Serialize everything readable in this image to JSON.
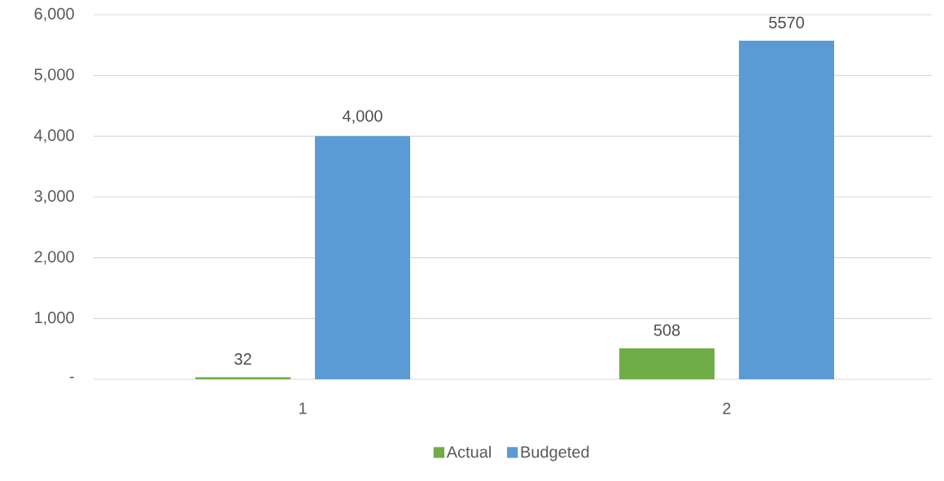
{
  "chart_data": {
    "type": "bar",
    "categories": [
      "1",
      "2"
    ],
    "series": [
      {
        "name": "Actual",
        "color": "#70ad47",
        "values": [
          32,
          508
        ],
        "value_labels": [
          "32",
          "508"
        ]
      },
      {
        "name": "Budgeted",
        "color": "#5b9bd5",
        "values": [
          4000,
          5570
        ],
        "value_labels": [
          "4,000",
          "5570"
        ]
      }
    ],
    "ylim": [
      0,
      6000
    ],
    "yticks": [
      {
        "value": 0,
        "label": "-"
      },
      {
        "value": 1000,
        "label": "1,000"
      },
      {
        "value": 2000,
        "label": "2,000"
      },
      {
        "value": 3000,
        "label": "3,000"
      },
      {
        "value": 4000,
        "label": "4,000"
      },
      {
        "value": 5000,
        "label": "5,000"
      },
      {
        "value": 6000,
        "label": "6,000"
      }
    ],
    "grid": "y",
    "legend": "bottom"
  }
}
